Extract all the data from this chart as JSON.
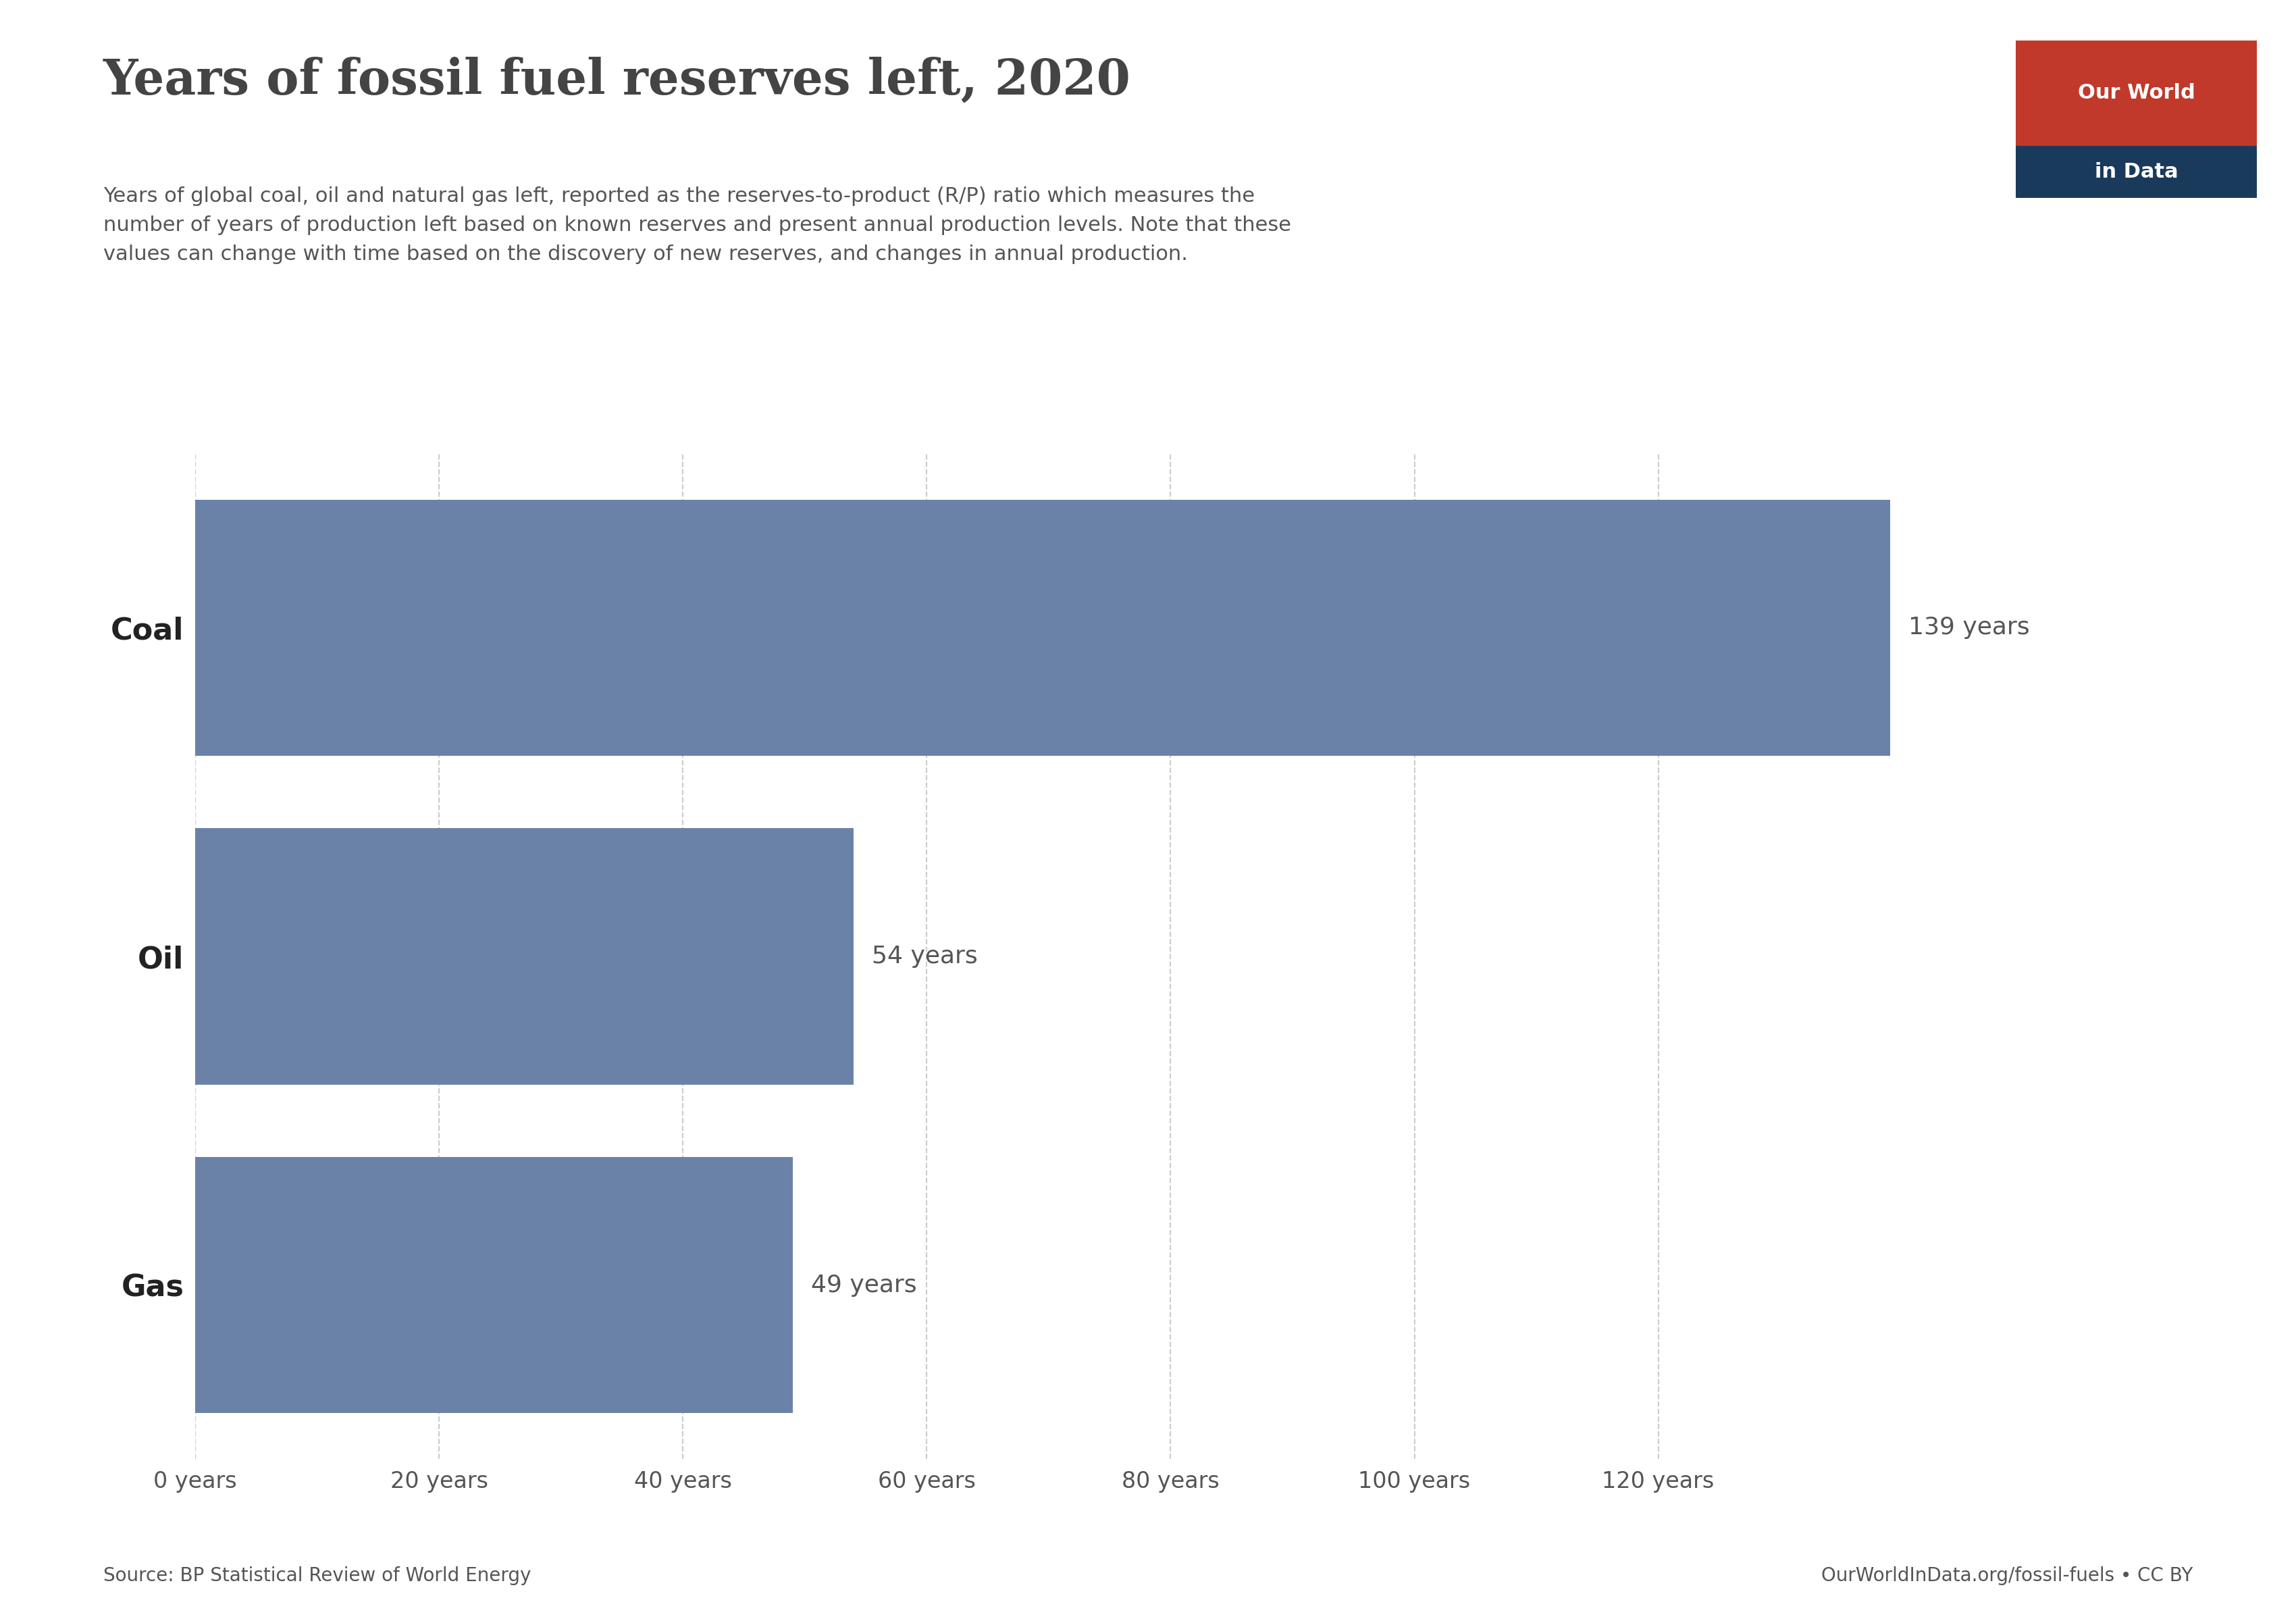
{
  "title": "Years of fossil fuel reserves left, 2020",
  "subtitle": "Years of global coal, oil and natural gas left, reported as the reserves-to-product (R/P) ratio which measures the\nnumber of years of production left based on known reserves and present annual production levels. Note that these\nvalues can change with time based on the discovery of new reserves, and changes in annual production.",
  "categories": [
    "Coal",
    "Oil",
    "Gas"
  ],
  "values": [
    139,
    54,
    49
  ],
  "labels": [
    "139 years",
    "54 years",
    "49 years"
  ],
  "bar_color": "#6b82a8",
  "background_color": "#ffffff",
  "xlim": [
    0,
    145
  ],
  "xticks": [
    0,
    20,
    40,
    60,
    80,
    100,
    120
  ],
  "xtick_labels": [
    "0 years",
    "20 years",
    "40 years",
    "60 years",
    "80 years",
    "100 years",
    "120 years"
  ],
  "source_left": "Source: BP Statistical Review of World Energy",
  "source_right": "OurWorldInData.org/fossil-fuels • CC BY",
  "owid_logo_text1": "Our World",
  "owid_logo_text2": "in Data",
  "owid_logo_bg": "#c0392b",
  "owid_logo_text_color": "#ffffff",
  "owid_logo_nav_bg": "#1a3a5c",
  "title_fontsize": 52,
  "subtitle_fontsize": 22,
  "bar_label_fontsize": 26,
  "axis_label_fontsize": 24,
  "category_label_fontsize": 32,
  "source_fontsize": 20,
  "grid_color": "#cccccc",
  "tick_color": "#555555",
  "title_color": "#444444",
  "subtitle_color": "#555555",
  "category_color": "#222222"
}
